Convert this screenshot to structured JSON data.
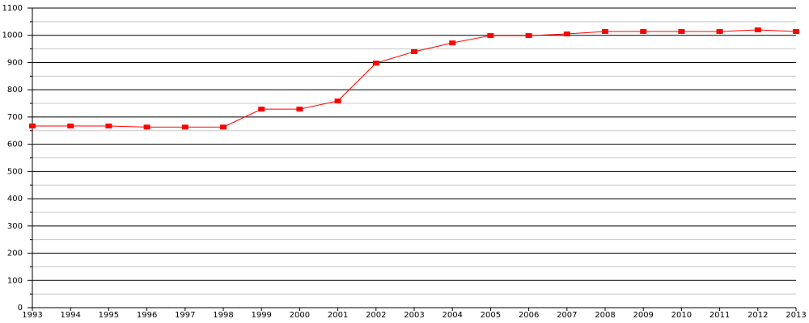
{
  "chart_data": {
    "type": "line",
    "x": [
      1993,
      1994,
      1995,
      1996,
      1997,
      1998,
      1999,
      2000,
      2001,
      2002,
      2003,
      2004,
      2005,
      2006,
      2007,
      2008,
      2009,
      2010,
      2011,
      2012,
      2013
    ],
    "series": [
      {
        "color": "#ff0000",
        "values": [
          667,
          667,
          667,
          663,
          663,
          663,
          729,
          729,
          759,
          898,
          940,
          972,
          999,
          999,
          1005,
          1014,
          1014,
          1014,
          1014,
          1020,
          1014
        ]
      }
    ],
    "xlim": [
      1993,
      2013
    ],
    "xticks": [
      1993,
      1994,
      1995,
      1996,
      1997,
      1998,
      1999,
      2000,
      2001,
      2002,
      2003,
      2004,
      2005,
      2006,
      2007,
      2008,
      2009,
      2010,
      2011,
      2012,
      2013
    ],
    "ylim": [
      0,
      1100
    ],
    "yticks": [
      0,
      100,
      200,
      300,
      400,
      500,
      600,
      700,
      800,
      900,
      1000,
      1100
    ],
    "minor_yticks": [
      50,
      150,
      250,
      350,
      450,
      550,
      650,
      750,
      850,
      950,
      1050
    ],
    "grid": true
  }
}
